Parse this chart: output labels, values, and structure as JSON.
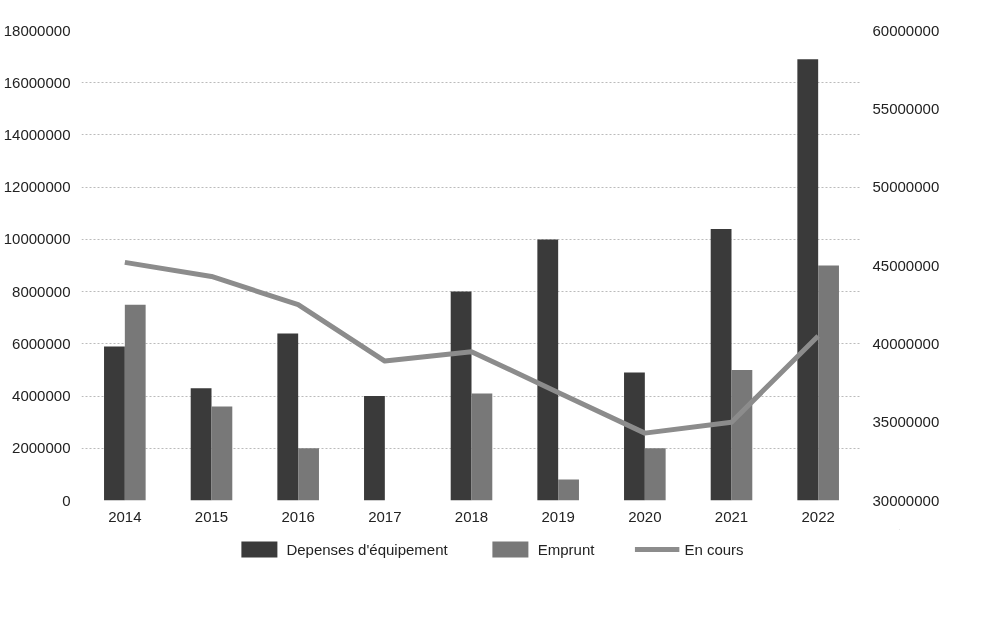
{
  "chart_data": {
    "type": "bar",
    "categories": [
      "2014",
      "2015",
      "2016",
      "2017",
      "2018",
      "2019",
      "2020",
      "2021",
      "2022"
    ],
    "series": [
      {
        "name": "Depenses d'équipement",
        "color": "#3a3a3a",
        "values": [
          5900000,
          4300000,
          6400000,
          4000000,
          8000000,
          10000000,
          4900000,
          10400000,
          16900000
        ]
      },
      {
        "name": "Emprunt",
        "color": "#787878",
        "values": [
          7500000,
          3600000,
          2000000,
          null,
          4100000,
          800000,
          2000000,
          5000000,
          9000000
        ]
      },
      {
        "name": "En cours",
        "color": "#8c8c8c",
        "type": "line",
        "axis": "y2",
        "values": [
          45200000,
          44300000,
          42500000,
          38900000,
          39500000,
          36900000,
          34300000,
          35000000,
          40500000
        ]
      }
    ],
    "ylim": [
      0,
      18000000
    ],
    "yticks": [
      0,
      2000000,
      4000000,
      6000000,
      8000000,
      10000000,
      12000000,
      14000000,
      16000000,
      18000000
    ],
    "y2lim": [
      30000000,
      60000000
    ],
    "y2ticks": [
      30000000,
      35000000,
      40000000,
      45000000,
      50000000,
      55000000,
      60000000
    ],
    "grid": "y",
    "legend": "bottom"
  }
}
